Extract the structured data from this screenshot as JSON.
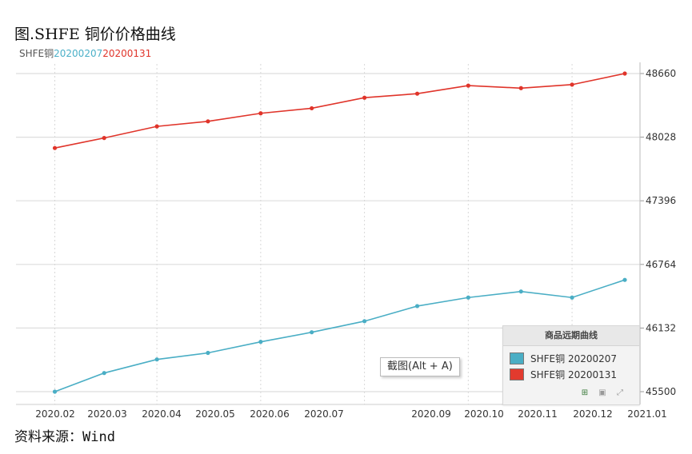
{
  "page": {
    "title_cn": "图.",
    "title_latin": "SHFE",
    "title_cn2": " 铜价价格曲线",
    "source_cn": "资料来源：",
    "source_latin": "Wind"
  },
  "subtitle": {
    "prefix": "SHFE铜",
    "series1": "20200207",
    "series2": "20200131",
    "colors": {
      "prefix": "#555555",
      "series1": "#4bb0c8",
      "series2": "#e0342a"
    }
  },
  "legend": {
    "title": "商品远期曲线",
    "items": [
      {
        "label": "SHFE铜 20200207",
        "color": "#4aaec5"
      },
      {
        "label": "SHFE铜 20200131",
        "color": "#e23a2e"
      }
    ],
    "tools": [
      "excel-icon",
      "image-icon",
      "collapse-icon"
    ]
  },
  "tooltip": {
    "text": "截图(Alt + A)"
  },
  "chart_data": {
    "type": "line",
    "x_ticks": [
      "2020.02",
      "2020.03",
      "2020.04",
      "2020.05",
      "2020.06",
      "2020.07",
      "2020.09",
      "2020.10",
      "2020.11",
      "2020.12",
      "2021.01"
    ],
    "y_ticks": [
      45500,
      46132,
      46764,
      47396,
      48028,
      48660
    ],
    "ylim": [
      45500,
      48660
    ],
    "xlim": [
      "2020-01-20",
      "2021-01-01"
    ],
    "y_axis_side": "right",
    "grid": true,
    "series": [
      {
        "name": "SHFE铜 20200131",
        "color": "#e0342a",
        "points": [
          {
            "x": "2020-02-01",
            "y": 47920
          },
          {
            "x": "2020-03-01",
            "y": 48020
          },
          {
            "x": "2020-04-01",
            "y": 48135
          },
          {
            "x": "2020-05-01",
            "y": 48185
          },
          {
            "x": "2020-06-01",
            "y": 48265
          },
          {
            "x": "2020-07-01",
            "y": 48315
          },
          {
            "x": "2020-08-01",
            "y": 48420
          },
          {
            "x": "2020-09-01",
            "y": 48460
          },
          {
            "x": "2020-10-01",
            "y": 48540
          },
          {
            "x": "2020-11-01",
            "y": 48515
          },
          {
            "x": "2020-12-01",
            "y": 48550
          },
          {
            "x": "2021-01-01",
            "y": 48660
          }
        ]
      },
      {
        "name": "SHFE铜 20200207",
        "color": "#4aaec5",
        "points": [
          {
            "x": "2020-02-01",
            "y": 45500
          },
          {
            "x": "2020-03-01",
            "y": 45685
          },
          {
            "x": "2020-04-01",
            "y": 45820
          },
          {
            "x": "2020-05-01",
            "y": 45885
          },
          {
            "x": "2020-06-01",
            "y": 45995
          },
          {
            "x": "2020-07-01",
            "y": 46090
          },
          {
            "x": "2020-08-01",
            "y": 46200
          },
          {
            "x": "2020-09-01",
            "y": 46350
          },
          {
            "x": "2020-10-01",
            "y": 46435
          },
          {
            "x": "2020-11-01",
            "y": 46495
          },
          {
            "x": "2020-12-01",
            "y": 46435
          },
          {
            "x": "2021-01-01",
            "y": 46610
          }
        ]
      }
    ]
  }
}
